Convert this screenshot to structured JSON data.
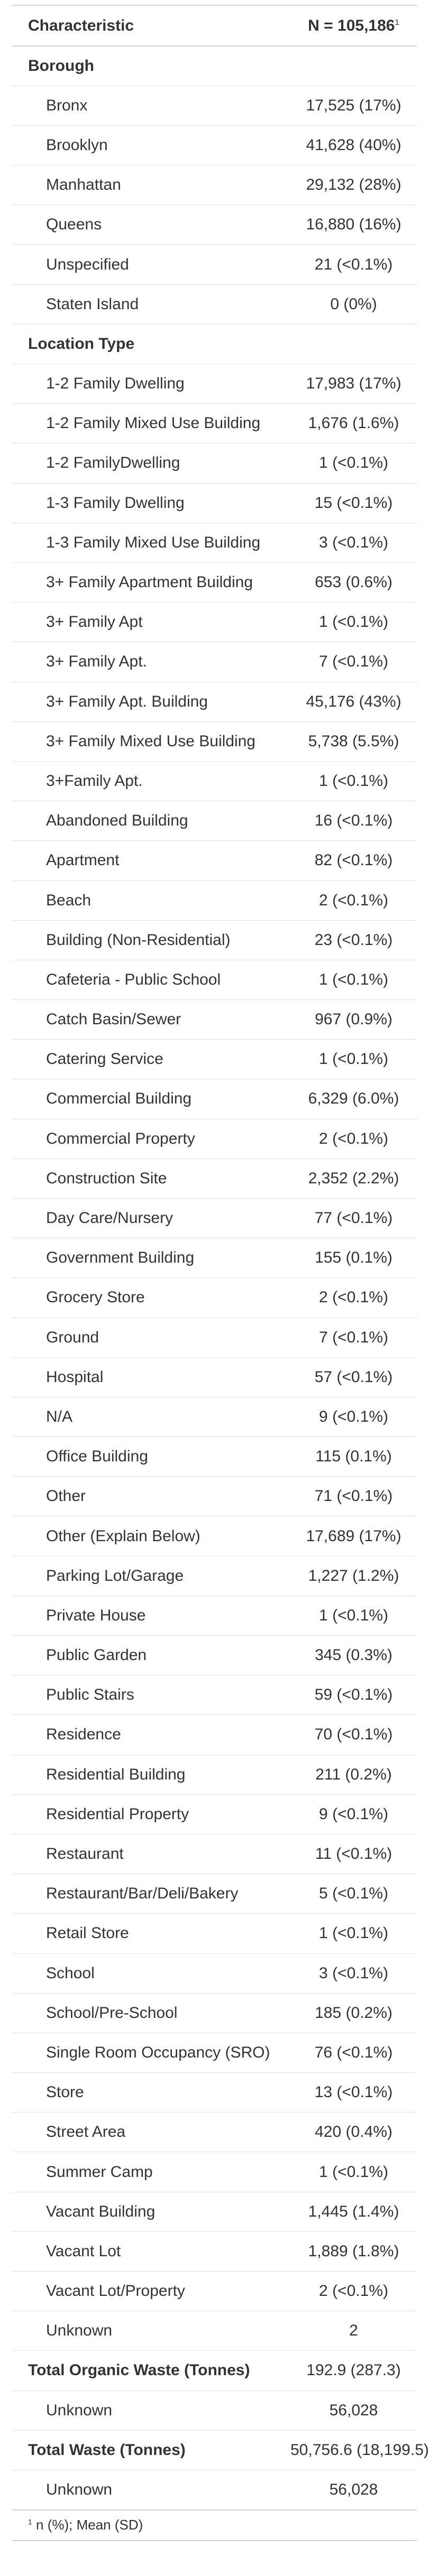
{
  "header": {
    "characteristic": "Characteristic",
    "n_total": "N = 105,186",
    "footnote_mark": "1"
  },
  "footnote": {
    "mark": "1",
    "text": "n (%); Mean (SD)"
  },
  "sections": [
    {
      "variable": "Borough",
      "value": "",
      "rows": [
        {
          "label": "Bronx",
          "value": "17,525 (17%)"
        },
        {
          "label": "Brooklyn",
          "value": "41,628 (40%)"
        },
        {
          "label": "Manhattan",
          "value": "29,132 (28%)"
        },
        {
          "label": "Queens",
          "value": "16,880 (16%)"
        },
        {
          "label": "Unspecified",
          "value": "21 (<0.1%)"
        },
        {
          "label": "Staten Island",
          "value": "0 (0%)"
        }
      ]
    },
    {
      "variable": "Location Type",
      "value": "",
      "rows": [
        {
          "label": "1-2 Family Dwelling",
          "value": "17,983 (17%)"
        },
        {
          "label": "1-2 Family Mixed Use Building",
          "value": "1,676 (1.6%)"
        },
        {
          "label": "1-2 FamilyDwelling",
          "value": "1 (<0.1%)"
        },
        {
          "label": "1-3 Family Dwelling",
          "value": "15 (<0.1%)"
        },
        {
          "label": "1-3 Family Mixed Use Building",
          "value": "3 (<0.1%)"
        },
        {
          "label": "3+ Family Apartment Building",
          "value": "653 (0.6%)"
        },
        {
          "label": "3+ Family Apt",
          "value": "1 (<0.1%)"
        },
        {
          "label": "3+ Family Apt.",
          "value": "7 (<0.1%)"
        },
        {
          "label": "3+ Family Apt. Building",
          "value": "45,176 (43%)"
        },
        {
          "label": "3+ Family Mixed Use Building",
          "value": "5,738 (5.5%)"
        },
        {
          "label": "3+Family Apt.",
          "value": "1 (<0.1%)"
        },
        {
          "label": "Abandoned Building",
          "value": "16 (<0.1%)"
        },
        {
          "label": "Apartment",
          "value": "82 (<0.1%)"
        },
        {
          "label": "Beach",
          "value": "2 (<0.1%)"
        },
        {
          "label": "Building (Non-Residential)",
          "value": "23 (<0.1%)"
        },
        {
          "label": "Cafeteria - Public School",
          "value": "1 (<0.1%)"
        },
        {
          "label": "Catch Basin/Sewer",
          "value": "967 (0.9%)"
        },
        {
          "label": "Catering Service",
          "value": "1 (<0.1%)"
        },
        {
          "label": "Commercial Building",
          "value": "6,329 (6.0%)"
        },
        {
          "label": "Commercial Property",
          "value": "2 (<0.1%)"
        },
        {
          "label": "Construction Site",
          "value": "2,352 (2.2%)"
        },
        {
          "label": "Day Care/Nursery",
          "value": "77 (<0.1%)"
        },
        {
          "label": "Government Building",
          "value": "155 (0.1%)"
        },
        {
          "label": "Grocery Store",
          "value": "2 (<0.1%)"
        },
        {
          "label": "Ground",
          "value": "7 (<0.1%)"
        },
        {
          "label": "Hospital",
          "value": "57 (<0.1%)"
        },
        {
          "label": "N/A",
          "value": "9 (<0.1%)"
        },
        {
          "label": "Office Building",
          "value": "115 (0.1%)"
        },
        {
          "label": "Other",
          "value": "71 (<0.1%)"
        },
        {
          "label": "Other (Explain Below)",
          "value": "17,689 (17%)"
        },
        {
          "label": "Parking Lot/Garage",
          "value": "1,227 (1.2%)"
        },
        {
          "label": "Private House",
          "value": "1 (<0.1%)"
        },
        {
          "label": "Public Garden",
          "value": "345 (0.3%)"
        },
        {
          "label": "Public Stairs",
          "value": "59 (<0.1%)"
        },
        {
          "label": "Residence",
          "value": "70 (<0.1%)"
        },
        {
          "label": "Residential Building",
          "value": "211 (0.2%)"
        },
        {
          "label": "Residential Property",
          "value": "9 (<0.1%)"
        },
        {
          "label": "Restaurant",
          "value": "11 (<0.1%)"
        },
        {
          "label": "Restaurant/Bar/Deli/Bakery",
          "value": "5 (<0.1%)"
        },
        {
          "label": "Retail Store",
          "value": "1 (<0.1%)"
        },
        {
          "label": "School",
          "value": "3 (<0.1%)"
        },
        {
          "label": "School/Pre-School",
          "value": "185 (0.2%)"
        },
        {
          "label": "Single Room Occupancy (SRO)",
          "value": "76 (<0.1%)"
        },
        {
          "label": "Store",
          "value": "13 (<0.1%)"
        },
        {
          "label": "Street Area",
          "value": "420 (0.4%)"
        },
        {
          "label": "Summer Camp",
          "value": "1 (<0.1%)"
        },
        {
          "label": "Vacant Building",
          "value": "1,445 (1.4%)"
        },
        {
          "label": "Vacant Lot",
          "value": "1,889 (1.8%)"
        },
        {
          "label": "Vacant Lot/Property",
          "value": "2 (<0.1%)"
        },
        {
          "label": "Unknown",
          "value": "2"
        }
      ]
    },
    {
      "variable": "Total Organic Waste (Tonnes)",
      "value": "192.9 (287.3)",
      "rows": [
        {
          "label": "Unknown",
          "value": "56,028"
        }
      ]
    },
    {
      "variable": "Total Waste (Tonnes)",
      "value": "50,756.6 (18,199.5)",
      "rows": [
        {
          "label": "Unknown",
          "value": "56,028"
        }
      ]
    }
  ]
}
